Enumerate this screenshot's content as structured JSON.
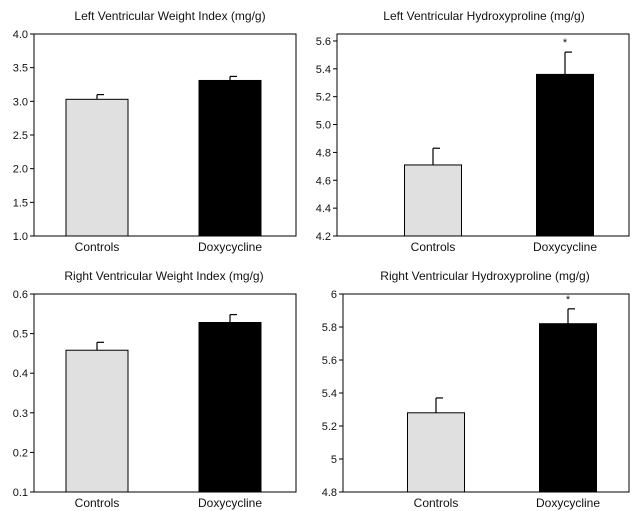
{
  "chart_data": [
    {
      "type": "bar",
      "title": "Left Ventricular Weight Index (mg/g)",
      "categories": [
        "Controls",
        "Doxycycline"
      ],
      "values": [
        3.03,
        3.31
      ],
      "errors": [
        0.07,
        0.06
      ],
      "significance": [
        "",
        ""
      ],
      "bar_colors": [
        "#e0e0e0",
        "#000000"
      ],
      "ylim": [
        1.0,
        4.0
      ],
      "yticks": [
        "1.0",
        "1.5",
        "2.0",
        "2.5",
        "3.0",
        "3.5",
        "4.0"
      ],
      "ytick_values": [
        1.0,
        1.5,
        2.0,
        2.5,
        3.0,
        3.5,
        4.0
      ],
      "grid": false
    },
    {
      "type": "bar",
      "title": "Left Ventricular Hydroxyproline (mg/g)",
      "categories": [
        "Controls",
        "Doxycycline"
      ],
      "values": [
        4.71,
        5.36
      ],
      "errors": [
        0.12,
        0.16
      ],
      "significance": [
        "",
        "*"
      ],
      "bar_colors": [
        "#e0e0e0",
        "#000000"
      ],
      "ylim": [
        4.2,
        5.65
      ],
      "yticks": [
        "4.2",
        "4.4",
        "4.6",
        "4.8",
        "5.0",
        "5.2",
        "5.4",
        "5.6"
      ],
      "ytick_values": [
        4.2,
        4.4,
        4.6,
        4.8,
        5.0,
        5.2,
        5.4,
        5.6
      ],
      "grid": false
    },
    {
      "type": "bar",
      "title": "Right Ventricular Weight Index (mg/g)",
      "categories": [
        "Controls",
        "Doxycycline"
      ],
      "values": [
        0.458,
        0.528
      ],
      "errors": [
        0.02,
        0.02
      ],
      "significance": [
        "",
        ""
      ],
      "bar_colors": [
        "#e0e0e0",
        "#000000"
      ],
      "ylim": [
        0.1,
        0.6
      ],
      "yticks": [
        "0.1",
        "0.2",
        "0.3",
        "0.4",
        "0.5",
        "0.6"
      ],
      "ytick_values": [
        0.1,
        0.2,
        0.3,
        0.4,
        0.5,
        0.6
      ],
      "grid": false
    },
    {
      "type": "bar",
      "title": "Right Ventricular Hydroxyproline (mg/g)",
      "categories": [
        "Controls",
        "Doxycycline"
      ],
      "values": [
        5.28,
        5.82
      ],
      "errors": [
        0.09,
        0.09
      ],
      "significance": [
        "",
        "*"
      ],
      "bar_colors": [
        "#e0e0e0",
        "#000000"
      ],
      "ylim": [
        4.8,
        6.0
      ],
      "yticks": [
        "4.8",
        "5",
        "5.2",
        "5.4",
        "5.6",
        "5.8",
        "6"
      ],
      "ytick_values": [
        4.8,
        5.0,
        5.2,
        5.4,
        5.6,
        5.8,
        6.0
      ],
      "grid": false
    }
  ]
}
